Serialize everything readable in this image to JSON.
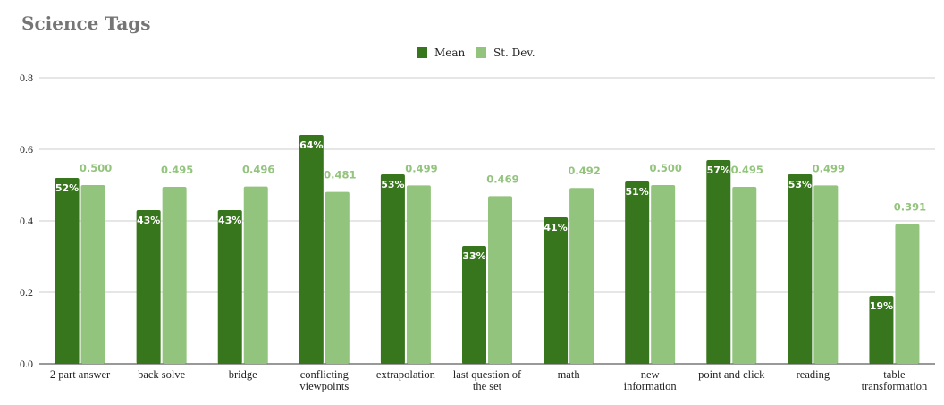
{
  "chart_data": {
    "type": "bar",
    "title": "Science Tags",
    "categories": [
      [
        "2 part answer"
      ],
      [
        "back solve"
      ],
      [
        "bridge"
      ],
      [
        "conflicting",
        "viewpoints"
      ],
      [
        "extrapolation"
      ],
      [
        "last question of",
        "the set"
      ],
      [
        "math"
      ],
      [
        "new",
        "information"
      ],
      [
        "point and click"
      ],
      [
        "reading"
      ],
      [
        "table",
        "transformation"
      ]
    ],
    "series": [
      {
        "name": "Mean",
        "color": "#38761d",
        "values": [
          0.52,
          0.43,
          0.43,
          0.64,
          0.53,
          0.33,
          0.41,
          0.51,
          0.57,
          0.53,
          0.19
        ],
        "labels": [
          "52%",
          "43%",
          "43%",
          "64%",
          "53%",
          "33%",
          "41%",
          "51%",
          "57%",
          "53%",
          "19%"
        ]
      },
      {
        "name": "St. Dev.",
        "color": "#93c47d",
        "values": [
          0.5,
          0.495,
          0.496,
          0.481,
          0.499,
          0.469,
          0.492,
          0.5,
          0.495,
          0.499,
          0.391
        ],
        "labels": [
          "0.500",
          "0.495",
          "0.496",
          "0.481",
          "0.499",
          "0.469",
          "0.492",
          "0.500",
          "0.495",
          "0.499",
          "0.391"
        ]
      }
    ],
    "ylim": [
      0,
      0.8
    ],
    "yticks": [
      "0.0",
      "0.2",
      "0.4",
      "0.6",
      "0.8"
    ],
    "ytick_values": [
      0,
      0.2,
      0.4,
      0.6,
      0.8
    ],
    "grid": true,
    "legend_position": "top-center",
    "colors": {
      "gridline": "#cccccc",
      "axis": "#333333"
    }
  }
}
